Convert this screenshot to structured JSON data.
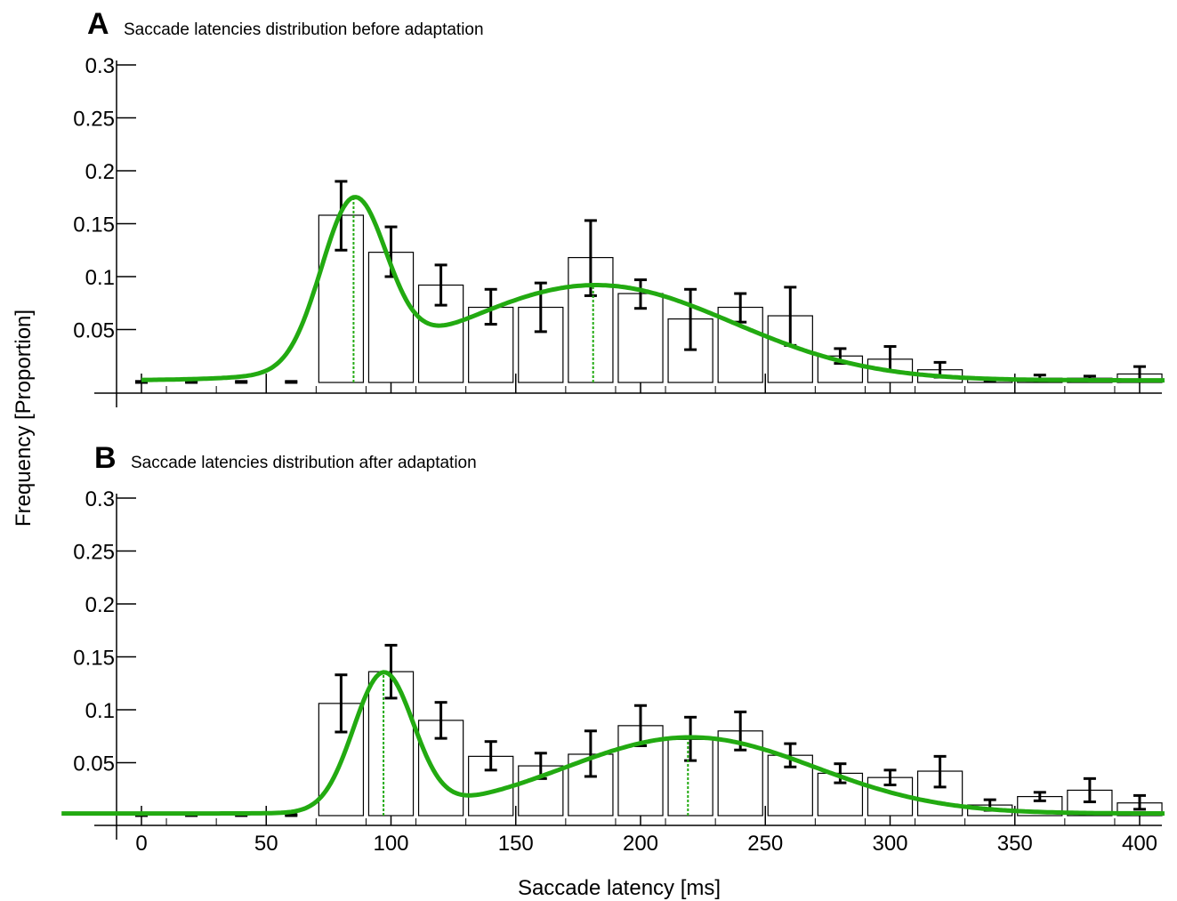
{
  "figure": {
    "ylabel": "Frequency [Proportion]",
    "xlabel": "Saccade latency [ms]"
  },
  "chart_data": [
    {
      "type": "bar",
      "panel": "A",
      "title": "Saccade latencies distribution before adaptation",
      "xlabel": "Saccade latency [ms]",
      "ylabel": "Frequency [Proportion]",
      "xlim": [
        -10,
        410
      ],
      "ylim": [
        -0.01,
        0.3
      ],
      "yticks": [
        0.05,
        0.1,
        0.15,
        0.2,
        0.25,
        0.3
      ],
      "ytick_labels": [
        "0.05",
        "0.1",
        "0.15",
        "0.2",
        "0.25",
        "0.3"
      ],
      "xticks": [
        0,
        50,
        100,
        150,
        200,
        250,
        300,
        350,
        400
      ],
      "xtick_labels": [],
      "grid": false,
      "bin_width": 20,
      "x": [
        0,
        20,
        40,
        60,
        80,
        100,
        120,
        140,
        160,
        180,
        200,
        220,
        240,
        260,
        280,
        300,
        320,
        340,
        360,
        380,
        400
      ],
      "values": [
        0,
        0,
        0,
        0,
        0.158,
        0.123,
        0.092,
        0.071,
        0.071,
        0.118,
        0.084,
        0.06,
        0.071,
        0.063,
        0.025,
        0.022,
        0.012,
        0.003,
        0.004,
        0.004,
        0.008
      ],
      "err_low": [
        0,
        0,
        0,
        0,
        0.125,
        0.1,
        0.073,
        0.055,
        0.048,
        0.082,
        0.07,
        0.031,
        0.057,
        0.035,
        0.018,
        0.011,
        0.005,
        0.001,
        0.002,
        0.002,
        0.002
      ],
      "err_high": [
        0.001,
        0.001,
        0.001,
        0.001,
        0.19,
        0.147,
        0.111,
        0.088,
        0.094,
        0.153,
        0.097,
        0.088,
        0.084,
        0.09,
        0.032,
        0.034,
        0.019,
        0.004,
        0.007,
        0.006,
        0.015
      ],
      "fit": {
        "color": "#22aa11",
        "components": [
          {
            "amp": 0.154,
            "mu": 85,
            "sigma": 13
          },
          {
            "amp": 0.09,
            "mu": 182,
            "sigma": 55
          }
        ],
        "baseline": 0.002
      },
      "markers": [
        85,
        181
      ],
      "marker_color": "#22aa11"
    },
    {
      "type": "bar",
      "panel": "B",
      "title": "Saccade latencies distribution after adaptation",
      "xlabel": "Saccade latency [ms]",
      "ylabel": "Frequency [Proportion]",
      "xlim": [
        -10,
        410
      ],
      "ylim": [
        -0.01,
        0.3
      ],
      "yticks": [
        0.05,
        0.1,
        0.15,
        0.2,
        0.25,
        0.3
      ],
      "ytick_labels": [
        "0.05",
        "0.1",
        "0.15",
        "0.2",
        "0.25",
        "0.3"
      ],
      "xticks": [
        0,
        50,
        100,
        150,
        200,
        250,
        300,
        350,
        400
      ],
      "xtick_labels": [
        "0",
        "50",
        "100",
        "150",
        "200",
        "250",
        "300",
        "350",
        "400"
      ],
      "grid": false,
      "bin_width": 20,
      "x": [
        0,
        20,
        40,
        60,
        80,
        100,
        120,
        140,
        160,
        180,
        200,
        220,
        240,
        260,
        280,
        300,
        320,
        340,
        360,
        380,
        400
      ],
      "values": [
        0,
        0,
        0,
        0,
        0.106,
        0.136,
        0.09,
        0.056,
        0.047,
        0.058,
        0.085,
        0.072,
        0.08,
        0.057,
        0.04,
        0.036,
        0.042,
        0.01,
        0.018,
        0.024,
        0.012
      ],
      "err_low": [
        0,
        0,
        0,
        0,
        0.079,
        0.111,
        0.073,
        0.043,
        0.035,
        0.037,
        0.066,
        0.052,
        0.062,
        0.046,
        0.031,
        0.029,
        0.027,
        0.005,
        0.014,
        0.013,
        0.006
      ],
      "err_high": [
        0.001,
        0.001,
        0.001,
        0.001,
        0.133,
        0.161,
        0.107,
        0.07,
        0.059,
        0.08,
        0.104,
        0.093,
        0.098,
        0.068,
        0.049,
        0.043,
        0.056,
        0.015,
        0.022,
        0.035,
        0.019
      ],
      "fit": {
        "color": "#22aa11",
        "components": [
          {
            "amp": 0.13,
            "mu": 97,
            "sigma": 12
          },
          {
            "amp": 0.072,
            "mu": 220,
            "sigma": 50
          }
        ],
        "baseline": 0.002
      },
      "markers": [
        97,
        219
      ],
      "marker_color": "#22aa11"
    }
  ]
}
